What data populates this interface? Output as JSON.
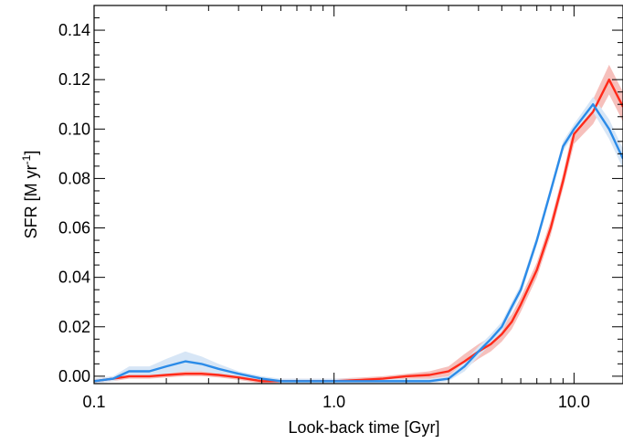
{
  "chart_data": {
    "type": "line",
    "xlabel": "Look-back time [Gyr]",
    "ylabel": "SFR [M yr",
    "ylabel_sup": "-1",
    "ylabel_close": "]",
    "xscale": "log",
    "xlim": [
      0.1,
      16
    ],
    "ylim": [
      -0.003,
      0.15
    ],
    "x_ticks": [
      0.1,
      1.0,
      10.0
    ],
    "x_tick_labels": [
      "0.1",
      "1.0",
      "10.0"
    ],
    "y_ticks": [
      0.0,
      0.02,
      0.04,
      0.06,
      0.08,
      0.1,
      0.12,
      0.14
    ],
    "y_tick_labels": [
      "0.00",
      "0.02",
      "0.04",
      "0.06",
      "0.08",
      "0.10",
      "0.12",
      "0.14"
    ],
    "grid": false,
    "series": [
      {
        "color": "#ff2a1a",
        "band_color": "#f6c0bc",
        "x": [
          0.1,
          0.12,
          0.14,
          0.17,
          0.2,
          0.24,
          0.28,
          0.33,
          0.4,
          0.5,
          0.6,
          0.8,
          1.0,
          1.3,
          1.6,
          2.0,
          2.5,
          3.0,
          3.5,
          4.0,
          4.5,
          5.0,
          5.5,
          6.0,
          7.0,
          8.0,
          9.0,
          10.0,
          12.0,
          14.0,
          16.0
        ],
        "y": [
          -0.002,
          -0.001,
          0.0,
          0.0,
          0.0005,
          0.001,
          0.001,
          0.0005,
          -0.0005,
          -0.002,
          -0.002,
          -0.002,
          -0.002,
          -0.0015,
          -0.001,
          0.0,
          0.0005,
          0.002,
          0.006,
          0.01,
          0.013,
          0.017,
          0.022,
          0.029,
          0.043,
          0.06,
          0.079,
          0.098,
          0.107,
          0.12,
          0.109
        ],
        "band": [
          0.001,
          0.001,
          0.001,
          0.001,
          0.001,
          0.001,
          0.001,
          0.001,
          0.001,
          0.001,
          0.001,
          0.001,
          0.001,
          0.001,
          0.001,
          0.001,
          0.0015,
          0.002,
          0.003,
          0.003,
          0.003,
          0.003,
          0.003,
          0.003,
          0.003,
          0.003,
          0.003,
          0.004,
          0.005,
          0.006,
          0.006
        ]
      },
      {
        "color": "#2b8be8",
        "band_color": "#d7e6f6",
        "x": [
          0.1,
          0.12,
          0.14,
          0.17,
          0.2,
          0.24,
          0.28,
          0.33,
          0.4,
          0.5,
          0.6,
          0.8,
          1.0,
          1.3,
          1.6,
          2.0,
          2.5,
          3.0,
          3.5,
          4.0,
          4.5,
          5.0,
          5.5,
          6.0,
          7.0,
          8.0,
          9.0,
          10.0,
          12.0,
          14.0,
          16.0
        ],
        "y": [
          -0.002,
          -0.001,
          0.002,
          0.002,
          0.004,
          0.006,
          0.005,
          0.003,
          0.001,
          -0.001,
          -0.002,
          -0.002,
          -0.002,
          -0.002,
          -0.002,
          -0.002,
          -0.002,
          -0.001,
          0.004,
          0.01,
          0.015,
          0.02,
          0.028,
          0.035,
          0.055,
          0.075,
          0.093,
          0.1,
          0.11,
          0.1,
          0.088
        ],
        "band": [
          0.001,
          0.001,
          0.002,
          0.002,
          0.003,
          0.004,
          0.003,
          0.002,
          0.001,
          0.001,
          0.001,
          0.001,
          0.001,
          0.001,
          0.001,
          0.001,
          0.001,
          0.001,
          0.002,
          0.002,
          0.002,
          0.002,
          0.002,
          0.002,
          0.002,
          0.002,
          0.002,
          0.002,
          0.003,
          0.004,
          0.004
        ]
      }
    ]
  }
}
